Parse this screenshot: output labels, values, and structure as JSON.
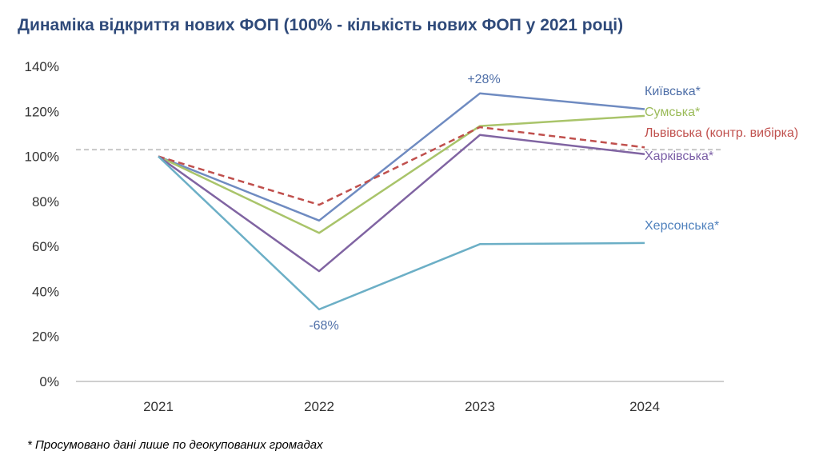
{
  "title": "Динаміка відкриття нових ФОП (100% - кількість нових ФОП у 2021 році)",
  "footnote": "* Просумовано дані лише по деокупованих громадах",
  "chart_data": {
    "type": "line",
    "title": "Динаміка відкриття нових ФОП (100% - кількість нових ФОП у 2021 році)",
    "x": [
      "2021",
      "2022",
      "2023",
      "2024"
    ],
    "ylim": [
      0,
      140
    ],
    "yticks": [
      0,
      20,
      40,
      60,
      80,
      100,
      120,
      140
    ],
    "ytick_labels": [
      "0%",
      "20%",
      "40%",
      "60%",
      "80%",
      "100%",
      "120%",
      "140%"
    ],
    "reference_line": 103,
    "grid": false,
    "legend": "inline labels at line ends (right)",
    "series": [
      {
        "name": "Київська*",
        "values": [
          100,
          71.5,
          128,
          121
        ],
        "color": "#6f8bc1",
        "dashed": false
      },
      {
        "name": "Сумська*",
        "values": [
          100,
          66,
          113.5,
          118
        ],
        "color": "#a9c46a",
        "dashed": false
      },
      {
        "name": "Львівська (контр. вибірка)",
        "values": [
          100,
          78.5,
          113,
          104
        ],
        "color": "#c0504d",
        "dashed": true
      },
      {
        "name": "Харківська*",
        "values": [
          100,
          49,
          109.5,
          101
        ],
        "color": "#8064a2",
        "dashed": false
      },
      {
        "name": "Херсонська*",
        "values": [
          100,
          32,
          61,
          61.5
        ],
        "color": "#6cafc6",
        "dashed": false
      }
    ],
    "annotations": [
      {
        "text": "+28%",
        "color": "#4f6fa8",
        "series": "Київська*",
        "point": "2023"
      },
      {
        "text": "-68%",
        "color": "#4f6fa8",
        "series": "Херсонська*",
        "point": "2022"
      }
    ]
  }
}
